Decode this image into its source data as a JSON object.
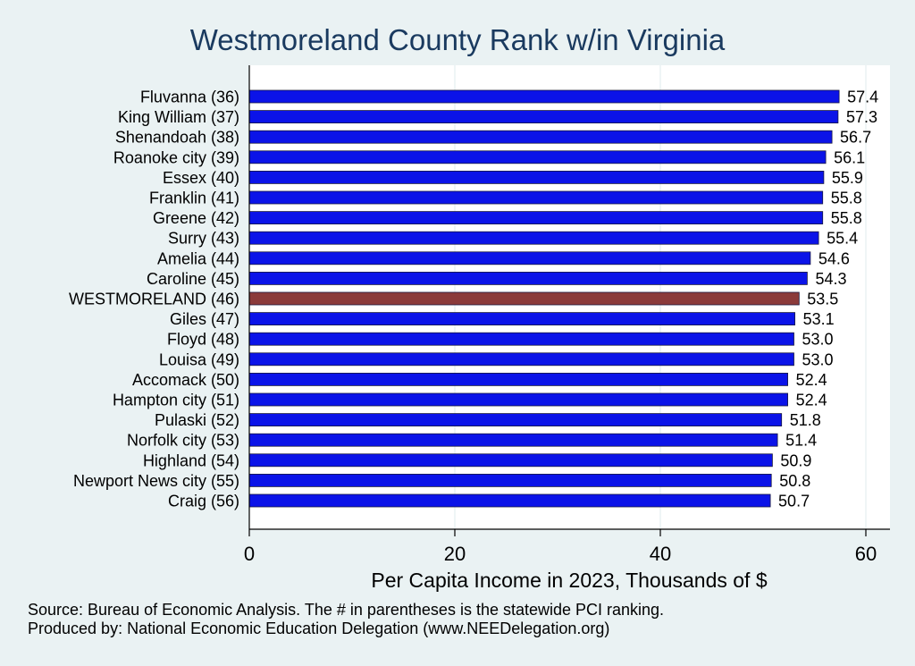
{
  "chart_data": {
    "type": "bar",
    "orientation": "horizontal",
    "title": "Westmoreland County Rank w/in Virginia",
    "xlabel": "Per Capita Income in 2023, Thousands of $",
    "ylabel": "",
    "xlim": [
      0,
      62
    ],
    "xticks": [
      "0",
      "20",
      "40",
      "60"
    ],
    "grid": "vertical",
    "bar_color": "#0b13e8",
    "highlight_color": "#8b3a3a",
    "highlight_index": 10,
    "categories": [
      "Fluvanna (36)",
      "King William (37)",
      "Shenandoah (38)",
      "Roanoke city (39)",
      "Essex (40)",
      "Franklin (41)",
      "Greene (42)",
      "Surry (43)",
      "Amelia (44)",
      "Caroline (45)",
      "WESTMORELAND (46)",
      "Giles (47)",
      "Floyd (48)",
      "Louisa (49)",
      "Accomack (50)",
      "Hampton city (51)",
      "Pulaski (52)",
      "Norfolk city (53)",
      "Highland (54)",
      "Newport News city (55)",
      "Craig (56)"
    ],
    "values": [
      57.4,
      57.3,
      56.7,
      56.1,
      55.9,
      55.8,
      55.8,
      55.4,
      54.6,
      54.3,
      53.5,
      53.1,
      53.0,
      53.0,
      52.4,
      52.4,
      51.8,
      51.4,
      50.9,
      50.8,
      50.7
    ],
    "value_labels": [
      "57.4",
      "57.3",
      "56.7",
      "56.1",
      "55.9",
      "55.8",
      "55.8",
      "55.4",
      "54.6",
      "54.3",
      "53.5",
      "53.1",
      "53.0",
      "53.0",
      "52.4",
      "52.4",
      "51.8",
      "51.4",
      "50.9",
      "50.8",
      "50.7"
    ]
  },
  "source": {
    "line1": "Source: Bureau of Economic Analysis. The # in parentheses is the statewide PCI ranking.",
    "line2": "Produced by: National Economic Education Delegation (www.NEEDelegation.org)"
  }
}
